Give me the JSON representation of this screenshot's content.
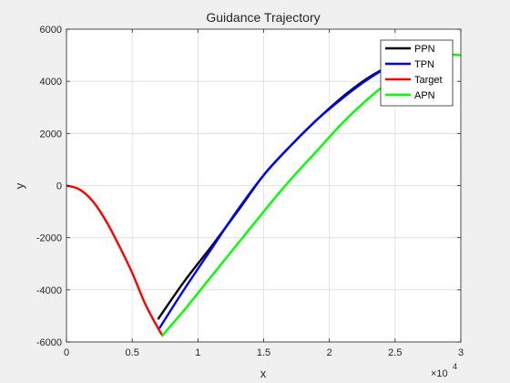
{
  "chart_data": {
    "type": "line",
    "title": "Guidance Trajectory",
    "xlabel": "x",
    "ylabel": "y",
    "x_exponent": "×10",
    "x_exponent_power": "4",
    "xlim": [
      0,
      3
    ],
    "ylim": [
      -6000,
      6000
    ],
    "xticks": [
      0,
      0.5,
      1,
      1.5,
      2,
      2.5,
      3
    ],
    "xtick_labels": [
      "0",
      "0.5",
      "1",
      "1.5",
      "2",
      "2.5",
      "3"
    ],
    "yticks": [
      -6000,
      -4000,
      -2000,
      0,
      2000,
      4000,
      6000
    ],
    "ytick_labels": [
      "-6000",
      "-4000",
      "-2000",
      "0",
      "2000",
      "4000",
      "6000"
    ],
    "grid": true,
    "legend_position": "top-right",
    "series": [
      {
        "name": "PPN",
        "color": "#000000",
        "x": [
          0.7,
          0.9,
          1.1,
          1.3,
          1.5,
          1.7,
          1.9,
          2.1,
          2.3,
          2.5,
          2.64
        ],
        "y": [
          -5100,
          -3650,
          -2350,
          -1000,
          400,
          1500,
          2500,
          3400,
          4150,
          4700,
          5000
        ]
      },
      {
        "name": "TPN",
        "color": "#0000ff",
        "x": [
          0.71,
          0.9,
          1.1,
          1.3,
          1.5,
          1.7,
          1.9,
          2.1,
          2.3,
          2.5,
          2.64
        ],
        "y": [
          -5450,
          -3950,
          -2450,
          -950,
          400,
          1500,
          2500,
          3350,
          4100,
          4700,
          5000
        ]
      },
      {
        "name": "Target",
        "color": "#ff0000",
        "x": [
          0,
          0.1,
          0.2,
          0.3,
          0.4,
          0.5,
          0.6,
          0.7,
          0.73
        ],
        "y": [
          0,
          -150,
          -600,
          -1350,
          -2300,
          -3350,
          -4550,
          -5500,
          -5750
        ]
      },
      {
        "name": "APN",
        "color": "#00ff00",
        "x": [
          0.73,
          0.9,
          1.1,
          1.3,
          1.5,
          1.7,
          1.9,
          2.1,
          2.3,
          2.5,
          2.7,
          2.9,
          3.0
        ],
        "y": [
          -5750,
          -4750,
          -3500,
          -2250,
          -1000,
          200,
          1300,
          2400,
          3350,
          4150,
          4750,
          5000,
          5000
        ]
      }
    ]
  }
}
